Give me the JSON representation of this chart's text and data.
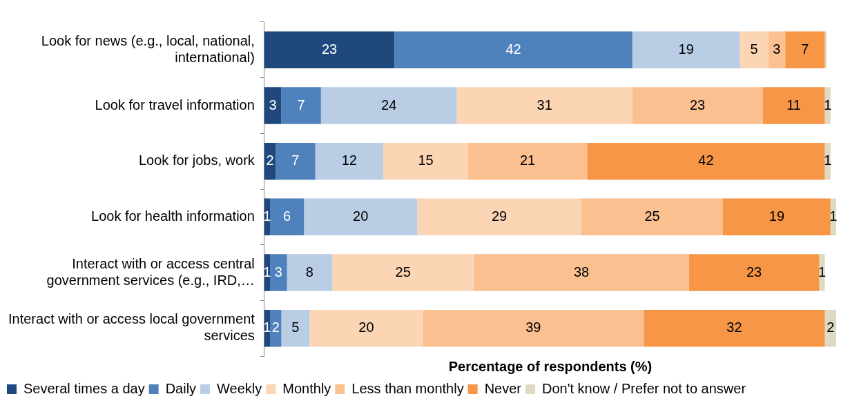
{
  "chart_data": {
    "type": "bar",
    "orientation": "horizontal",
    "stacked": true,
    "xlabel": "Percentage of respondents (%)",
    "legend": "bottom",
    "grid": false,
    "categories": [
      "Look for news (e.g., local, national, international)",
      "Look for travel information",
      "Look for jobs, work",
      "Look for health information",
      "Interact with or access central government services (e.g., IRD,…",
      "Interact with or access local government services"
    ],
    "series": [
      {
        "name": "Several times a day",
        "color": "#1f497d",
        "values": [
          23,
          3,
          2,
          1,
          1,
          1
        ],
        "value_labels": [
          "23",
          "3",
          "2",
          "1",
          "1",
          "1"
        ]
      },
      {
        "name": "Daily",
        "color": "#4f81bd",
        "values": [
          42,
          7,
          7,
          6,
          3,
          2
        ],
        "value_labels": [
          "42",
          "7",
          "7",
          "6",
          "3",
          "2"
        ]
      },
      {
        "name": "Weekly",
        "color": "#b9cde5",
        "values": [
          19,
          24,
          12,
          20,
          8,
          5
        ],
        "value_labels": [
          "19",
          "24",
          "12",
          "20",
          "8",
          "5"
        ]
      },
      {
        "name": "Monthly",
        "color": "#fcd5b5",
        "values": [
          5,
          31,
          15,
          29,
          25,
          20
        ],
        "value_labels": [
          "5",
          "31",
          "15",
          "29",
          "25",
          "20"
        ]
      },
      {
        "name": "Less than monthly",
        "color": "#fac090",
        "values": [
          3,
          23,
          21,
          25,
          38,
          39
        ],
        "value_labels": [
          "3",
          "23",
          "21",
          "25",
          "38",
          "39"
        ]
      },
      {
        "name": "Never",
        "color": "#f79646",
        "values": [
          7,
          11,
          42,
          19,
          23,
          32
        ],
        "value_labels": [
          "7",
          "11",
          "42",
          "19",
          "23",
          "32"
        ]
      },
      {
        "name": "Don't know / Prefer not to answer",
        "color": "#ddd9c3",
        "values": [
          0.3,
          1,
          1,
          1,
          1,
          2
        ],
        "value_labels": [
          null,
          "1",
          "1",
          "1",
          "1",
          "2"
        ]
      }
    ]
  }
}
